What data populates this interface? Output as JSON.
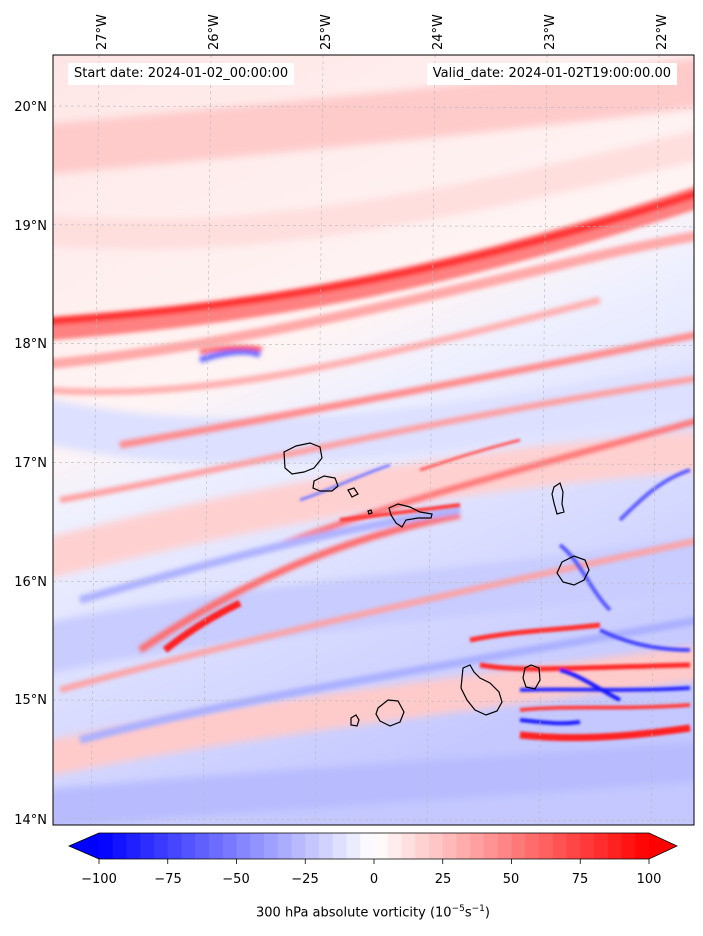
{
  "map": {
    "start_date": "Start date: 2024-01-02_00:00:00",
    "valid_date": "Valid_date: 2024-01-02T19:00:00.00",
    "lon_labels": [
      "27°W",
      "26°W",
      "25°W",
      "24°W",
      "23°W",
      "22°W"
    ],
    "lon_values": [
      -27,
      -26,
      -25,
      -24,
      -23,
      -22
    ],
    "lat_labels": [
      "20°N",
      "19°N",
      "18°N",
      "17°N",
      "16°N",
      "15°N",
      "14°N"
    ],
    "lat_values": [
      20,
      19,
      18,
      17,
      16,
      15,
      14
    ],
    "lon_range": [
      -27.35,
      -21.65
    ],
    "lat_range": [
      13.95,
      20.45
    ],
    "gridlines": true,
    "colorbar": {
      "label_pre": "300 hPa absolute vorticity (10",
      "label_sup1": "−5",
      "label_mid": "s",
      "label_sup2": "−1",
      "label_post": ")",
      "ticks": [
        "−100",
        "−75",
        "−50",
        "−25",
        "0",
        "25",
        "50",
        "75",
        "100"
      ],
      "tick_values": [
        -100,
        -75,
        -50,
        -25,
        0,
        25,
        50,
        75,
        100
      ],
      "range": [
        -100,
        100
      ],
      "extend": "both",
      "colormap": "bwr",
      "low_color": "#0000ff",
      "mid_color": "#ffffff",
      "high_color": "#ff0000"
    }
  }
}
